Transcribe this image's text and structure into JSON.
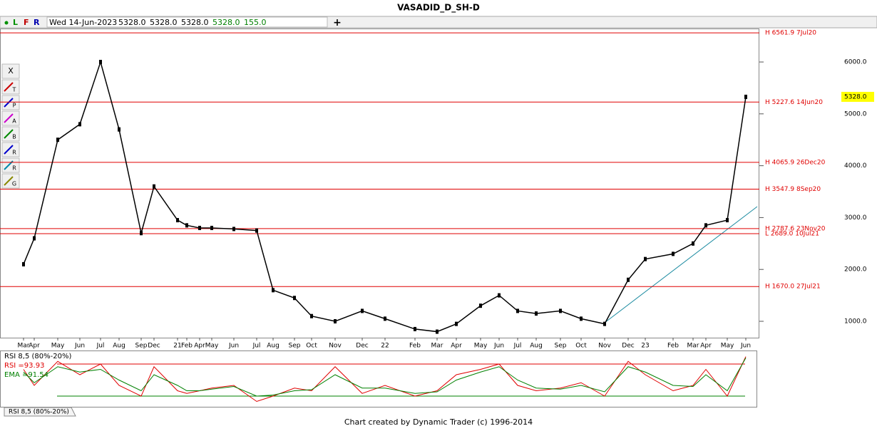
{
  "header": {
    "title": "VASADID_D_SH-D"
  },
  "toolbar": {
    "buttons": [
      "L",
      "F",
      "R"
    ],
    "date": "Wed 14-Jun-2023",
    "fields": [
      "5328.0",
      "5328.0",
      "5328.0",
      "5328.0",
      "155.0"
    ]
  },
  "tools": [
    "X",
    "T",
    "P",
    "A",
    "B",
    "R",
    "R",
    "G"
  ],
  "footer": "Chart created by Dynamic Trader  (c) 1996-2014",
  "tab": "RSI 8,5 (80%-20%)",
  "chart_data": [
    {
      "type": "line",
      "color": "#000000",
      "categories": [
        "Mar",
        "Apr",
        "May",
        "Jun",
        "Jul",
        "Aug",
        "Sep",
        "Dec",
        "21",
        "Feb",
        "Apr",
        "May",
        "Jun",
        "Jul",
        "Aug",
        "Sep",
        "Oct",
        "Nov",
        "Dec",
        "22",
        "Feb",
        "Mar",
        "Apr",
        "May",
        "Jun",
        "Jul",
        "Aug",
        "Sep",
        "Oct",
        "Nov",
        "Dec",
        "23",
        "Feb",
        "Mar",
        "Apr",
        "May",
        "Jun"
      ],
      "values": [
        2100,
        2600,
        4500,
        4800,
        6000,
        4700,
        2700,
        3600,
        2950,
        2850,
        2800,
        2800,
        2780,
        2750,
        1600,
        1450,
        1100,
        1000,
        1200,
        1050,
        850,
        800,
        950,
        1300,
        1500,
        1200,
        1150,
        1200,
        1050,
        950,
        1800,
        2200,
        2300,
        2500,
        2850,
        2950,
        5328
      ],
      "ylim": [
        684,
        6646
      ],
      "yticks": [
        {
          "value": 1000,
          "label": "1000.0"
        },
        {
          "value": 2000,
          "label": "2000.0"
        },
        {
          "value": 3000,
          "label": "3000.0"
        },
        {
          "value": 4000,
          "label": "4000.0"
        },
        {
          "value": 5000,
          "label": "5000.0"
        },
        {
          "value": 6000,
          "label": "6000.0"
        }
      ],
      "last_price": {
        "value": 5328,
        "label": "5328.0"
      },
      "annotations_color": "#e00000",
      "annotations": [
        {
          "value": 6561.9,
          "label": "H 6561.9 7Jul20"
        },
        {
          "value": 5227.6,
          "label": "H 5227.6 14Jun20"
        },
        {
          "value": 4065.9,
          "label": "H 4065.9 26Dec20"
        },
        {
          "value": 3547.9,
          "label": "H 3547.9 8Sep20"
        },
        {
          "value": 2787.6,
          "label": "H 2787.6 23Nov20"
        },
        {
          "value": 2689.0,
          "label": "L 2689.0 10Jul21"
        },
        {
          "value": 1670.0,
          "label": "H 1670.0 27Jul21"
        }
      ]
    },
    {
      "type": "line",
      "title": "RSI 8,5 (80%-20%)",
      "ylim": [
        0,
        100
      ],
      "levels": [
        {
          "value": 80,
          "color": "#e00000"
        },
        {
          "value": 20,
          "color": "#008000"
        }
      ],
      "series": [
        {
          "name": "RSI =93.93",
          "color": "#e00000",
          "values": [
            70,
            40,
            85,
            60,
            80,
            40,
            20,
            75,
            30,
            25,
            30,
            35,
            40,
            10,
            20,
            35,
            30,
            75,
            25,
            40,
            20,
            30,
            60,
            70,
            80,
            40,
            30,
            35,
            45,
            20,
            85,
            60,
            30,
            40,
            70,
            20,
            93.93
          ]
        },
        {
          "name": "EMA =91.54",
          "color": "#008000",
          "values": [
            65,
            45,
            75,
            65,
            70,
            50,
            30,
            60,
            40,
            30,
            30,
            33,
            38,
            20,
            22,
            30,
            32,
            60,
            35,
            35,
            25,
            28,
            50,
            65,
            75,
            50,
            35,
            33,
            40,
            28,
            75,
            65,
            40,
            38,
            60,
            30,
            91.54
          ]
        }
      ]
    }
  ]
}
